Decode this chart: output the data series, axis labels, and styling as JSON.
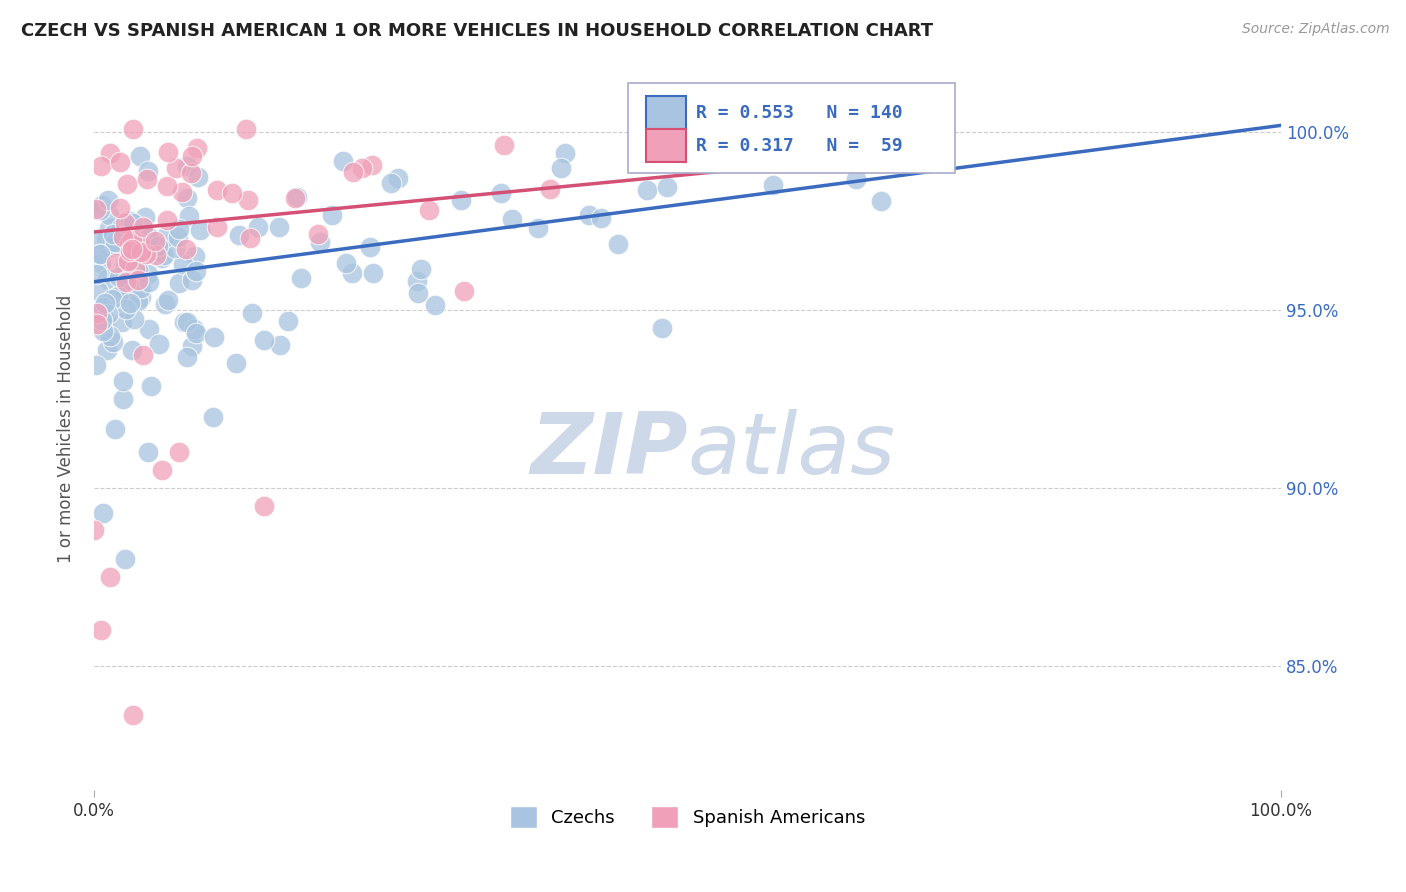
{
  "title": "CZECH VS SPANISH AMERICAN 1 OR MORE VEHICLES IN HOUSEHOLD CORRELATION CHART",
  "source_text": "Source: ZipAtlas.com",
  "ylabel": "1 or more Vehicles in Household",
  "legend_czechs": "Czechs",
  "legend_spanish": "Spanish Americans",
  "blue_R": 0.553,
  "blue_N": 140,
  "pink_R": 0.317,
  "pink_N": 59,
  "blue_color": "#a8c4e0",
  "blue_line_color": "#3a6bbf",
  "pink_color": "#f0a0b8",
  "pink_line_color": "#d45075",
  "text_color": "#3a6bbf",
  "watermark_color": "#cdd8e8",
  "background_color": "#ffffff",
  "xmin": 0.0,
  "xmax": 1.0,
  "ymin": 0.815,
  "ymax": 1.018,
  "yticks": [
    0.85,
    0.9,
    0.95,
    1.0
  ],
  "ytick_labels": [
    "85.0%",
    "90.0%",
    "95.0%",
    "100.0%"
  ],
  "blue_line_x0": 0.0,
  "blue_line_y0": 0.958,
  "blue_line_x1": 1.0,
  "blue_line_y1": 1.002,
  "pink_line_x0": 0.0,
  "pink_line_y0": 0.972,
  "pink_line_x1": 0.65,
  "pink_line_y1": 0.993
}
